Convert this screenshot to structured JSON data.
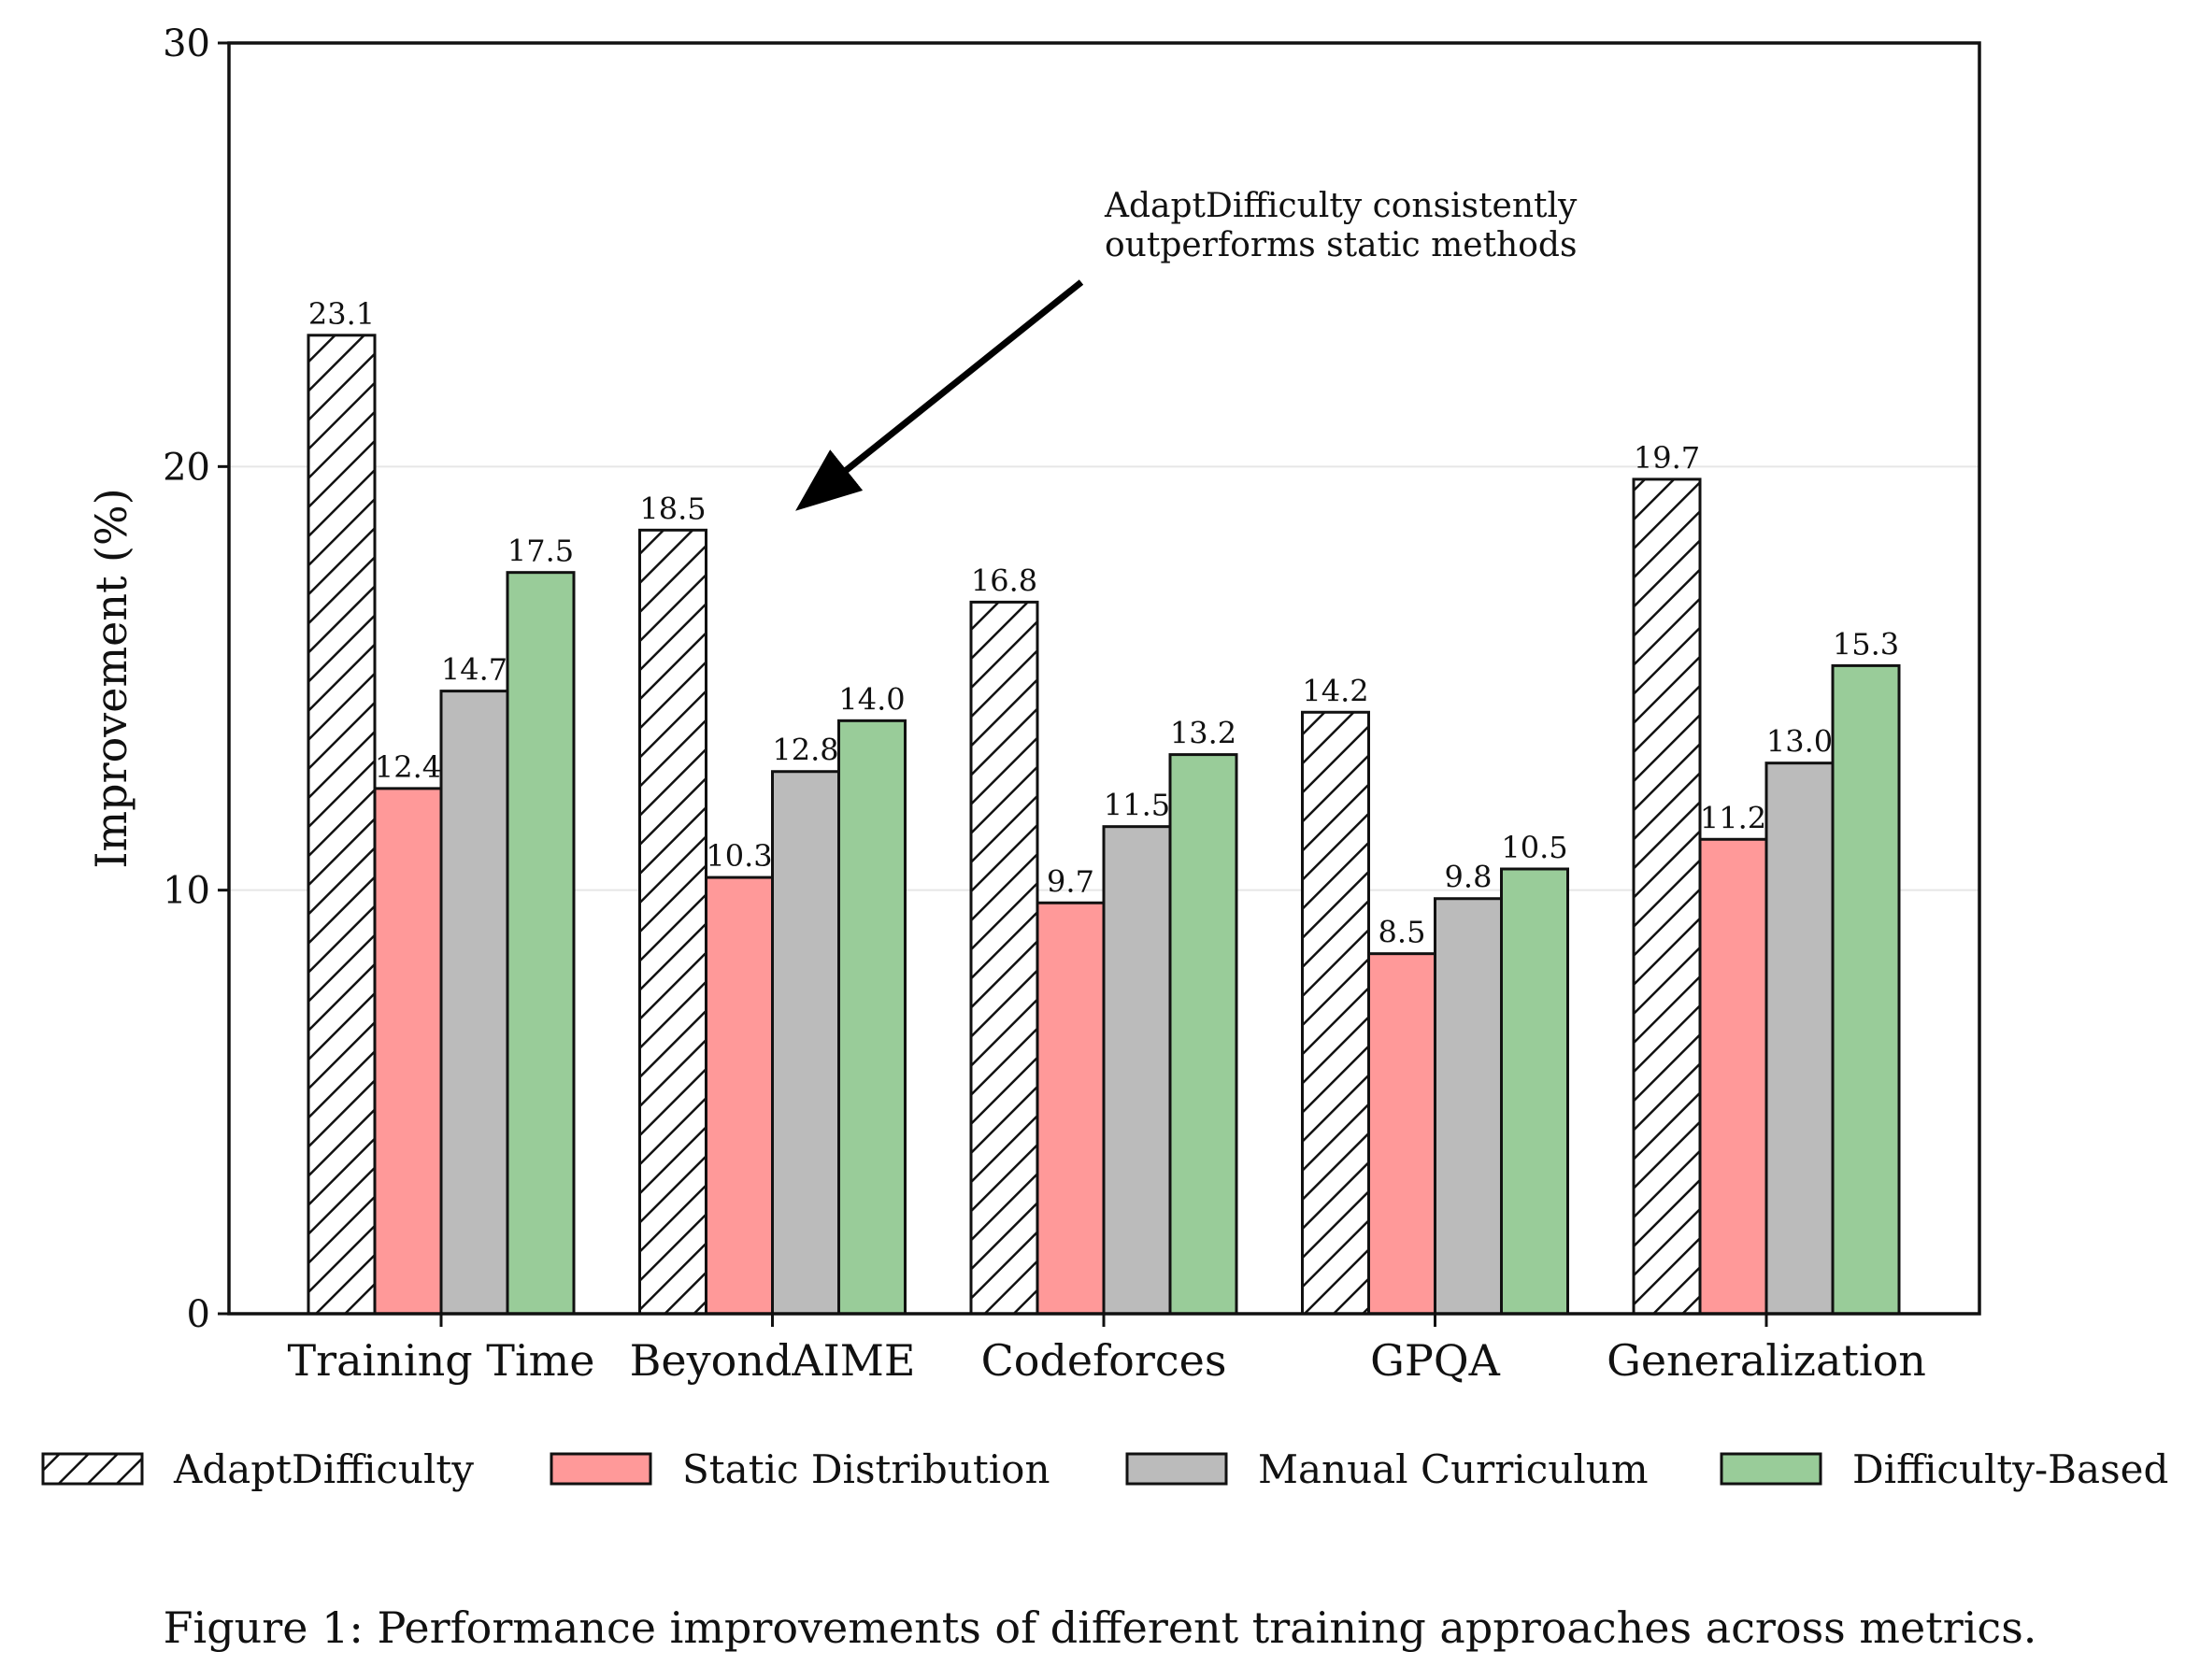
{
  "chart_data": {
    "type": "bar",
    "categories": [
      "Training Time",
      "BeyondAIME",
      "Codeforces",
      "GPQA",
      "Generalization"
    ],
    "series": [
      {
        "name": "AdaptDifficulty",
        "values": [
          23.1,
          18.5,
          16.8,
          14.2,
          19.7
        ],
        "color": "#ffffff",
        "hatch": true
      },
      {
        "name": "Static Distribution",
        "values": [
          12.4,
          10.3,
          9.7,
          8.5,
          11.2
        ],
        "color": "#ff9999"
      },
      {
        "name": "Manual Curriculum",
        "values": [
          14.7,
          12.8,
          11.5,
          9.8,
          13.0
        ],
        "color": "#bbbbbb"
      },
      {
        "name": "Difficulty-Based",
        "values": [
          17.5,
          14.0,
          13.2,
          10.5,
          15.3
        ],
        "color": "#99cc99"
      }
    ],
    "value_labels": [
      [
        "23.1",
        "18.5",
        "16.8",
        "14.2",
        "19.7"
      ],
      [
        "12.4",
        "10.3",
        "9.7",
        "8.5",
        "11.2"
      ],
      [
        "14.7",
        "12.8",
        "11.5",
        "9.8",
        "13.0"
      ],
      [
        "17.5",
        "14.0",
        "13.2",
        "10.5",
        "15.3"
      ]
    ],
    "ylabel": "Improvement (%)",
    "ylim": [
      0,
      30
    ],
    "yticks": [
      0,
      10,
      20,
      30
    ],
    "ytick_labels": [
      "0",
      "10",
      "20",
      "30"
    ],
    "grid": "y",
    "legend_position": "bottom",
    "annotation": {
      "lines": [
        "AdaptDifficulty consistently",
        "outperforms static methods"
      ]
    }
  },
  "caption": "Figure 1: Performance improvements of different training approaches across metrics."
}
